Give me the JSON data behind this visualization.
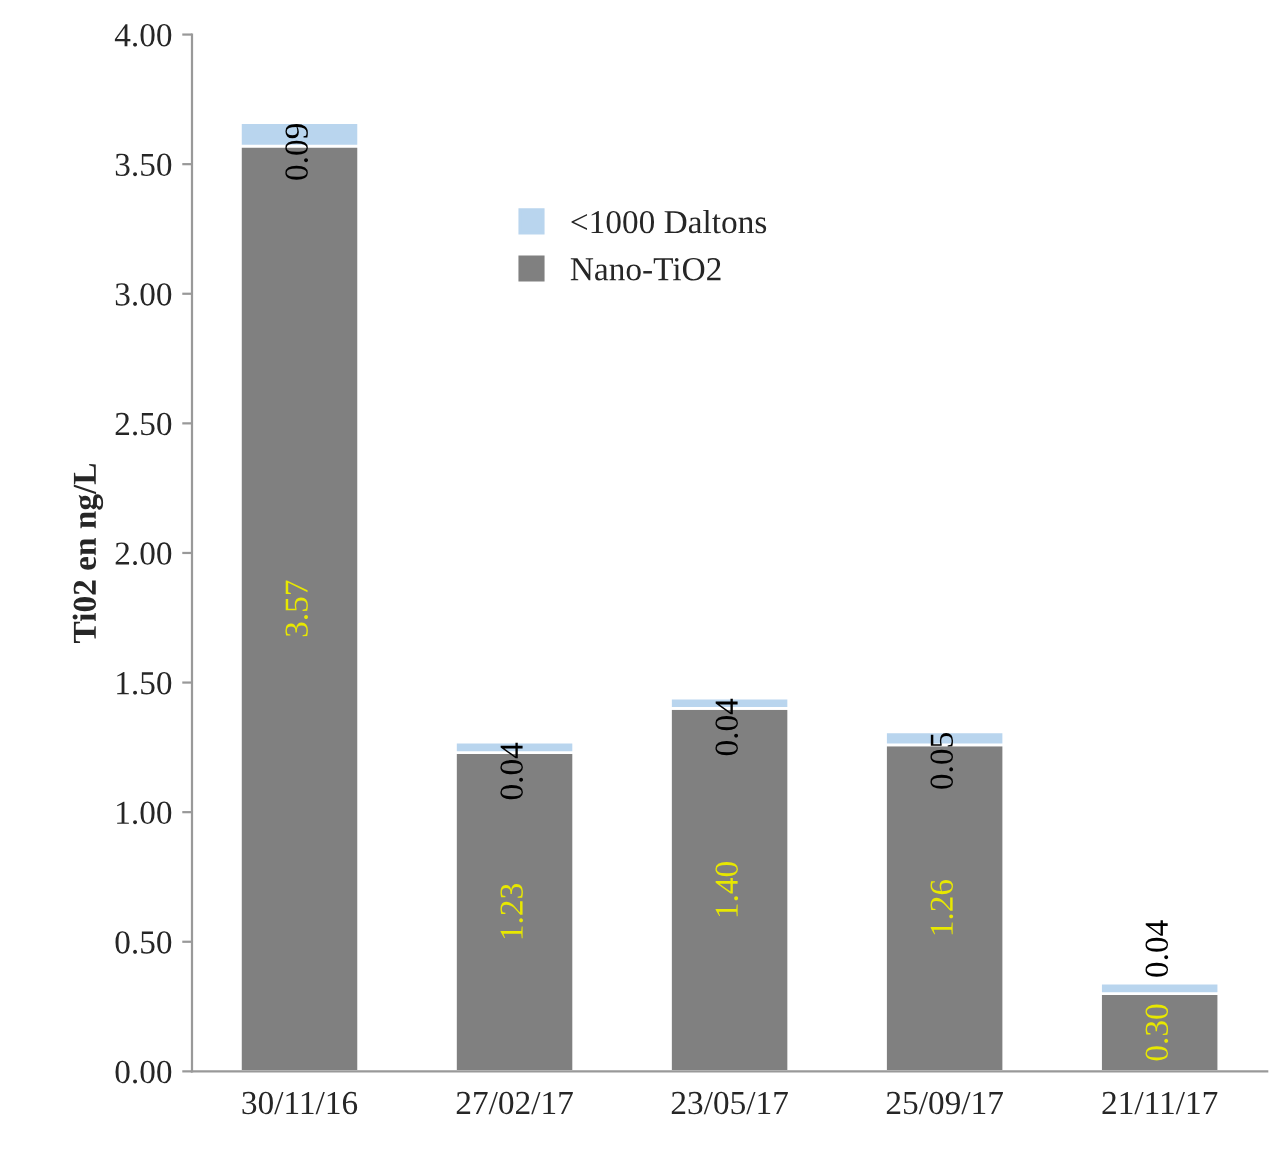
{
  "chart_data": {
    "type": "bar",
    "stacked": true,
    "ylabel": "Ti02 en ng/L",
    "categories": [
      "30/11/16",
      "27/02/17",
      "23/05/17",
      "25/09/17",
      "21/11/17"
    ],
    "series": [
      {
        "name": "Nano-TiO2",
        "color": "#808080",
        "values": [
          3.57,
          1.23,
          1.4,
          1.26,
          0.3
        ],
        "value_labels": [
          "3.57",
          "1.23",
          "1.40",
          "1.26",
          "0.30"
        ]
      },
      {
        "name": "<1000 Daltons",
        "color": "#b9d5ee",
        "values": [
          0.09,
          0.04,
          0.04,
          0.05,
          0.04
        ],
        "value_labels": [
          "0.09",
          "0.04",
          "0.04",
          "0.05",
          "0.04"
        ]
      }
    ],
    "ylim": [
      0,
      4
    ],
    "yticks": [
      {
        "value": 0,
        "label": "0.00"
      },
      {
        "value": 0.5,
        "label": "0.50"
      },
      {
        "value": 1,
        "label": "1.00"
      },
      {
        "value": 1.5,
        "label": "1.50"
      },
      {
        "value": 2,
        "label": "2.00"
      },
      {
        "value": 2.5,
        "label": "2.50"
      },
      {
        "value": 3,
        "label": "3.00"
      },
      {
        "value": 3.5,
        "label": "3.50"
      },
      {
        "value": 4,
        "label": "4.00"
      }
    ],
    "legend": "top",
    "grid": false
  }
}
